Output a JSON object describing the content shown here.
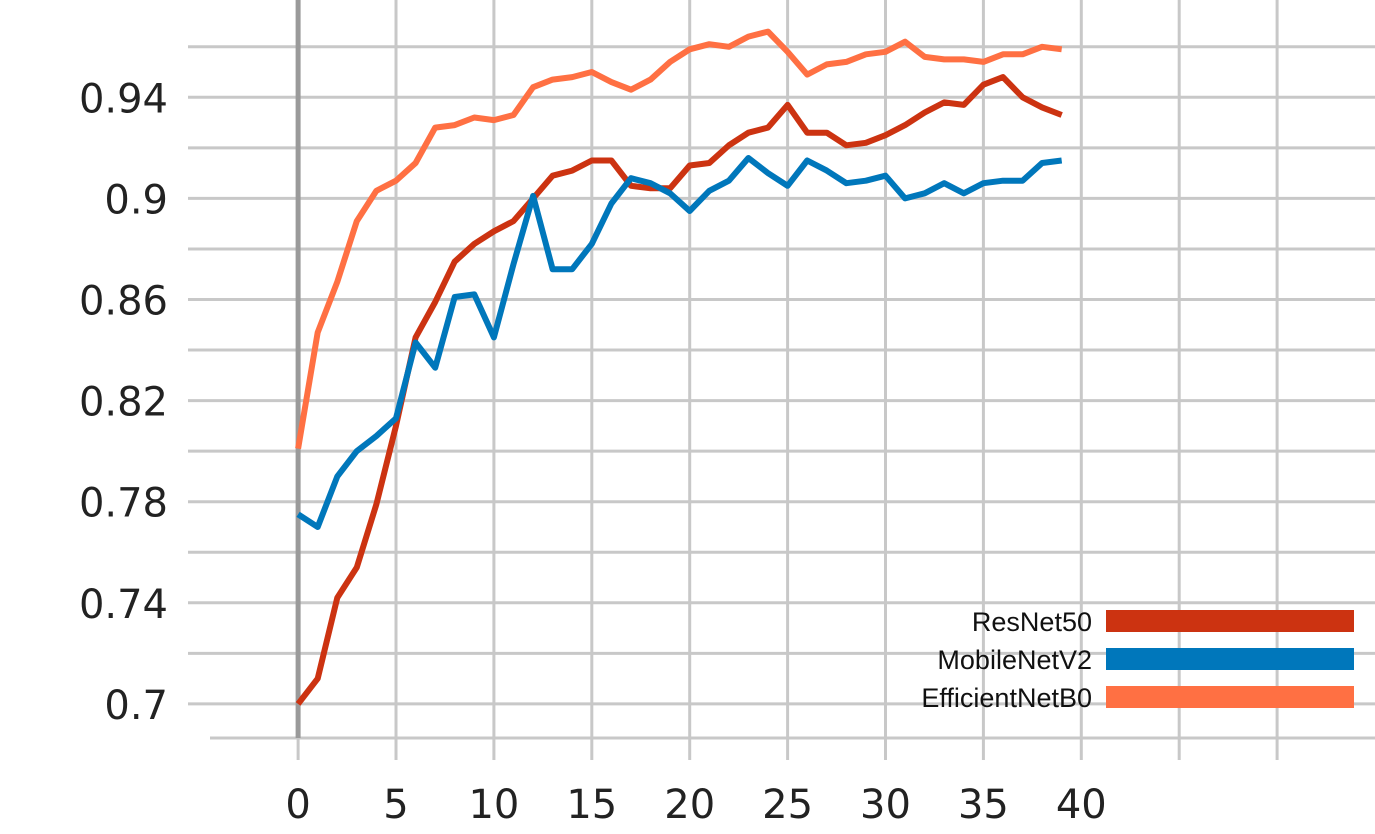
{
  "chart_data": {
    "type": "line",
    "title": "",
    "xlabel": "",
    "ylabel": "",
    "xlim": [
      -4.5,
      55
    ],
    "ylim": [
      0.6865,
      0.9785
    ],
    "x_ticks": [
      "0",
      "5",
      "10",
      "15",
      "20",
      "25",
      "30",
      "35",
      "40"
    ],
    "x_tick_values": [
      0,
      5,
      10,
      15,
      20,
      25,
      30,
      35,
      40
    ],
    "x_grid_values": [
      0,
      5,
      10,
      15,
      20,
      25,
      30,
      35,
      40,
      45,
      50
    ],
    "y_ticks": [
      "0.7",
      "0.74",
      "0.78",
      "0.82",
      "0.86",
      "0.9",
      "0.94"
    ],
    "y_tick_values": [
      0.7,
      0.74,
      0.78,
      0.82,
      0.86,
      0.9,
      0.94
    ],
    "y_grid_values": [
      0.7,
      0.72,
      0.74,
      0.76,
      0.78,
      0.8,
      0.82,
      0.84,
      0.86,
      0.88,
      0.9,
      0.92,
      0.94,
      0.96
    ],
    "grid": true,
    "legend_position": "bottom-right",
    "x": [
      0,
      1,
      2,
      3,
      4,
      5,
      6,
      7,
      8,
      9,
      10,
      11,
      12,
      13,
      14,
      15,
      16,
      17,
      18,
      19,
      20,
      21,
      22,
      23,
      24,
      25,
      26,
      27,
      28,
      29,
      30,
      31,
      32,
      33,
      34,
      35,
      36,
      37,
      38,
      39
    ],
    "series": [
      {
        "name": "ResNet50",
        "color": "#cc3311",
        "values": [
          0.7,
          0.71,
          0.742,
          0.754,
          0.779,
          0.81,
          0.845,
          0.859,
          0.875,
          0.882,
          0.887,
          0.891,
          0.9,
          0.909,
          0.911,
          0.915,
          0.915,
          0.905,
          0.904,
          0.904,
          0.913,
          0.914,
          0.921,
          0.926,
          0.928,
          0.937,
          0.926,
          0.926,
          0.921,
          0.922,
          0.925,
          0.929,
          0.934,
          0.938,
          0.937,
          0.945,
          0.948,
          0.94,
          0.936,
          0.933
        ]
      },
      {
        "name": "MobileNetV2",
        "color": "#0077bb",
        "values": [
          0.775,
          0.77,
          0.79,
          0.8,
          0.806,
          0.813,
          0.843,
          0.833,
          0.861,
          0.862,
          0.845,
          0.874,
          0.901,
          0.872,
          0.872,
          0.882,
          0.898,
          0.908,
          0.906,
          0.902,
          0.895,
          0.903,
          0.907,
          0.916,
          0.91,
          0.905,
          0.915,
          0.911,
          0.906,
          0.907,
          0.909,
          0.9,
          0.902,
          0.906,
          0.902,
          0.906,
          0.907,
          0.907,
          0.914,
          0.915
        ]
      },
      {
        "name": "EfficientNetB0",
        "color": "#ff7043",
        "values": [
          0.801,
          0.847,
          0.867,
          0.891,
          0.903,
          0.907,
          0.914,
          0.928,
          0.929,
          0.932,
          0.931,
          0.933,
          0.944,
          0.947,
          0.948,
          0.95,
          0.946,
          0.943,
          0.947,
          0.954,
          0.959,
          0.961,
          0.96,
          0.964,
          0.966,
          0.958,
          0.949,
          0.953,
          0.954,
          0.957,
          0.958,
          0.962,
          0.956,
          0.955,
          0.955,
          0.954,
          0.957,
          0.957,
          0.96,
          0.959
        ]
      }
    ]
  }
}
